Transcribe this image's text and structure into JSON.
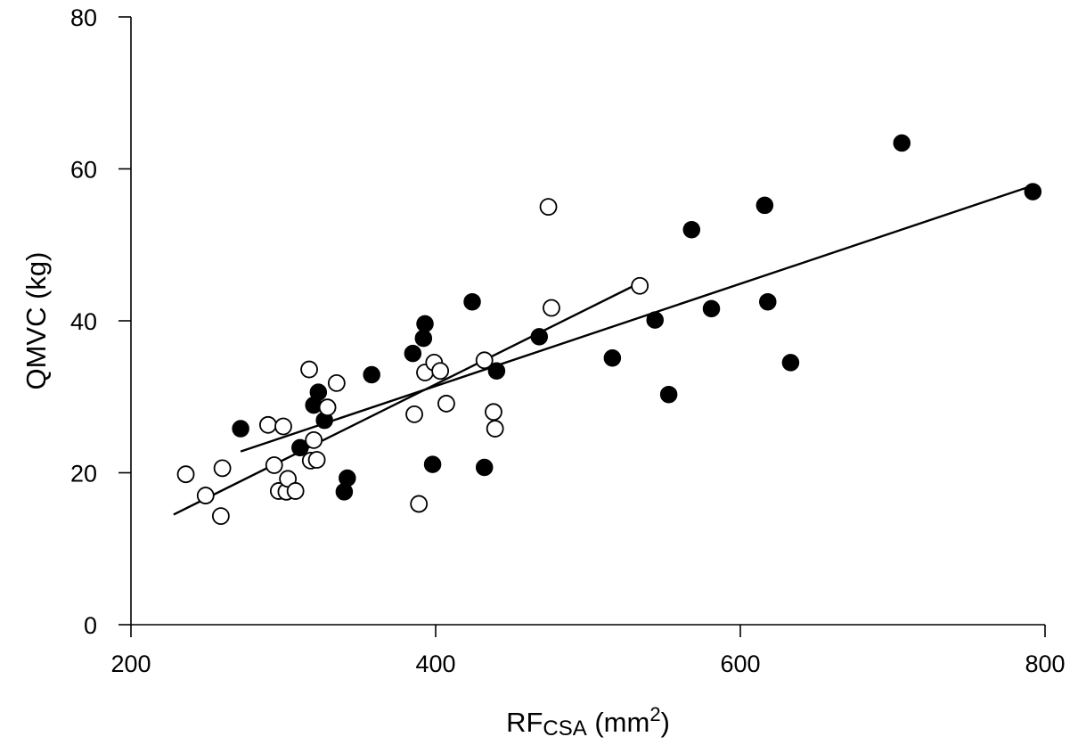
{
  "chart_data": {
    "type": "scatter",
    "title": "",
    "xlabel": "RF",
    "xlabel_subscript": "CSA",
    "xlabel_unit_open": " (mm",
    "xlabel_superscript": "2",
    "xlabel_unit_close": ")",
    "ylabel": "QMVC (kg)",
    "xlim": [
      200,
      800
    ],
    "ylim": [
      0,
      80
    ],
    "xticks": [
      200,
      400,
      600,
      800
    ],
    "yticks": [
      0,
      20,
      40,
      60,
      80
    ],
    "grid": false,
    "series": [
      {
        "name": "filled circles",
        "marker": "filled",
        "color": "#000000",
        "points": [
          {
            "x": 272,
            "y": 25.8
          },
          {
            "x": 311,
            "y": 23.3
          },
          {
            "x": 320,
            "y": 28.9
          },
          {
            "x": 323,
            "y": 30.6
          },
          {
            "x": 327,
            "y": 26.9
          },
          {
            "x": 340,
            "y": 17.5
          },
          {
            "x": 342,
            "y": 19.3
          },
          {
            "x": 358,
            "y": 32.9
          },
          {
            "x": 385,
            "y": 35.7
          },
          {
            "x": 392,
            "y": 37.7
          },
          {
            "x": 393,
            "y": 39.6
          },
          {
            "x": 398,
            "y": 21.1
          },
          {
            "x": 424,
            "y": 42.5
          },
          {
            "x": 432,
            "y": 20.7
          },
          {
            "x": 440,
            "y": 33.4
          },
          {
            "x": 468,
            "y": 37.9
          },
          {
            "x": 516,
            "y": 35.1
          },
          {
            "x": 544,
            "y": 40.1
          },
          {
            "x": 553,
            "y": 30.3
          },
          {
            "x": 568,
            "y": 52.0
          },
          {
            "x": 581,
            "y": 41.6
          },
          {
            "x": 616,
            "y": 55.2
          },
          {
            "x": 618,
            "y": 42.5
          },
          {
            "x": 633,
            "y": 34.5
          },
          {
            "x": 706,
            "y": 63.4
          },
          {
            "x": 792,
            "y": 57.0
          }
        ]
      },
      {
        "name": "open circles",
        "marker": "open",
        "color": "#000000",
        "points": [
          {
            "x": 236,
            "y": 19.8
          },
          {
            "x": 249,
            "y": 17.0
          },
          {
            "x": 259,
            "y": 14.3
          },
          {
            "x": 260,
            "y": 20.6
          },
          {
            "x": 290,
            "y": 26.3
          },
          {
            "x": 294,
            "y": 21.0
          },
          {
            "x": 297,
            "y": 17.6
          },
          {
            "x": 300,
            "y": 26.1
          },
          {
            "x": 302,
            "y": 17.5
          },
          {
            "x": 303,
            "y": 19.2
          },
          {
            "x": 308,
            "y": 17.6
          },
          {
            "x": 317,
            "y": 33.6
          },
          {
            "x": 318,
            "y": 21.6
          },
          {
            "x": 320,
            "y": 24.3
          },
          {
            "x": 322,
            "y": 21.7
          },
          {
            "x": 329,
            "y": 28.6
          },
          {
            "x": 335,
            "y": 31.8
          },
          {
            "x": 386,
            "y": 27.7
          },
          {
            "x": 389,
            "y": 15.9
          },
          {
            "x": 393,
            "y": 33.2
          },
          {
            "x": 399,
            "y": 34.5
          },
          {
            "x": 403,
            "y": 33.4
          },
          {
            "x": 407,
            "y": 29.1
          },
          {
            "x": 432,
            "y": 34.8
          },
          {
            "x": 438,
            "y": 28.0
          },
          {
            "x": 439,
            "y": 25.8
          },
          {
            "x": 474,
            "y": 55.0
          },
          {
            "x": 476,
            "y": 41.7
          },
          {
            "x": 534,
            "y": 44.6
          }
        ]
      }
    ],
    "fit_lines": [
      {
        "name": "filled fit",
        "x": [
          272,
          792
        ],
        "y": [
          22.8,
          57.8
        ]
      },
      {
        "name": "open fit",
        "x": [
          228,
          534
        ],
        "y": [
          14.5,
          45.0
        ]
      }
    ]
  }
}
